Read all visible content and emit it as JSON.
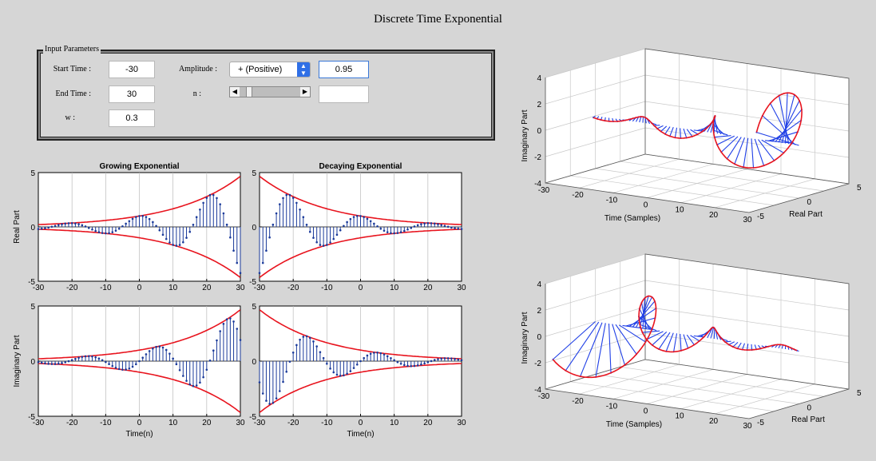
{
  "window": {
    "title": "Discrete Time Exponential"
  },
  "input_parameters": {
    "group_label": "Input Parameters",
    "start_time": {
      "label": "Start Time :",
      "value": "-30"
    },
    "end_time": {
      "label": "End Time :",
      "value": "30"
    },
    "w": {
      "label": "w :",
      "value": "0.3"
    },
    "amplitude": {
      "label": "Amplitude :",
      "selected": "+ (Positive)",
      "value": "0.95"
    },
    "n": {
      "label": "n :",
      "value": "",
      "slider_position": 0.12
    }
  },
  "colors": {
    "stem": "#1a3a9a",
    "envelope": "#e8141e",
    "spoke3d": "#1f3fe6"
  },
  "chart_data": [
    {
      "type": "stem",
      "id": "growing-real",
      "title": "Growing Exponential",
      "xlabel": "",
      "ylabel": "Real Part",
      "xlim": [
        -30,
        30
      ],
      "ylim": [
        -5,
        5
      ],
      "xticks": [
        "-30",
        "-20",
        "-10",
        "0",
        "10",
        "20",
        "30"
      ],
      "yticks": [
        "-5",
        "0",
        "5"
      ],
      "signal": {
        "a": 0.95,
        "growth": true,
        "w": 0.3,
        "part": "real",
        "n_start": -30,
        "n_end": 30
      }
    },
    {
      "type": "stem",
      "id": "decaying-real",
      "title": "Decaying Exponential",
      "xlabel": "",
      "ylabel": "",
      "xlim": [
        -30,
        30
      ],
      "ylim": [
        -5,
        5
      ],
      "xticks": [
        "-30",
        "-20",
        "-10",
        "0",
        "10",
        "20",
        "30"
      ],
      "yticks": [
        "-5",
        "0",
        "5"
      ],
      "signal": {
        "a": 0.95,
        "growth": false,
        "w": 0.3,
        "part": "real",
        "n_start": -30,
        "n_end": 30
      }
    },
    {
      "type": "stem",
      "id": "growing-imag",
      "title": "",
      "xlabel": "Time(n)",
      "ylabel": "Imaginary Part",
      "xlim": [
        -30,
        30
      ],
      "ylim": [
        -5,
        5
      ],
      "xticks": [
        "-30",
        "-20",
        "-10",
        "0",
        "10",
        "20",
        "30"
      ],
      "yticks": [
        "-5",
        "0",
        "5"
      ],
      "signal": {
        "a": 0.95,
        "growth": true,
        "w": 0.3,
        "part": "imag",
        "n_start": -30,
        "n_end": 30
      }
    },
    {
      "type": "stem",
      "id": "decaying-imag",
      "title": "",
      "xlabel": "Time(n)",
      "ylabel": "",
      "xlim": [
        -30,
        30
      ],
      "ylim": [
        -5,
        5
      ],
      "xticks": [
        "-30",
        "-20",
        "-10",
        "0",
        "10",
        "20",
        "30"
      ],
      "yticks": [
        "-5",
        "0",
        "5"
      ],
      "signal": {
        "a": 0.95,
        "growth": false,
        "w": 0.3,
        "part": "imag",
        "n_start": -30,
        "n_end": 30
      }
    },
    {
      "type": "stem3d",
      "id": "growing-3d",
      "xlabel": "Time (Samples)",
      "ylabel": "Real Part",
      "zlabel": "Imaginary Part",
      "xlim": [
        -30,
        30
      ],
      "ylim": [
        -5,
        5
      ],
      "zlim": [
        -4,
        4
      ],
      "xticks": [
        "-30",
        "-20",
        "-10",
        "0",
        "10",
        "20",
        "30"
      ],
      "yticks": [
        "-5",
        "0",
        "5"
      ],
      "zticks": [
        "-4",
        "-2",
        "0",
        "2",
        "4"
      ],
      "signal": {
        "a": 0.95,
        "growth": true,
        "w": 0.3,
        "n_start": -30,
        "n_end": 30
      }
    },
    {
      "type": "stem3d",
      "id": "decaying-3d",
      "xlabel": "Time (Samples)",
      "ylabel": "Real Part",
      "zlabel": "Imaginary Part",
      "xlim": [
        -30,
        30
      ],
      "ylim": [
        -5,
        5
      ],
      "zlim": [
        -4,
        4
      ],
      "xticks": [
        "-30",
        "-20",
        "-10",
        "0",
        "10",
        "20",
        "30"
      ],
      "yticks": [
        "-5",
        "0",
        "5"
      ],
      "zticks": [
        "-4",
        "-2",
        "0",
        "2",
        "4"
      ],
      "signal": {
        "a": 0.95,
        "growth": false,
        "w": 0.3,
        "n_start": -30,
        "n_end": 30
      }
    }
  ]
}
